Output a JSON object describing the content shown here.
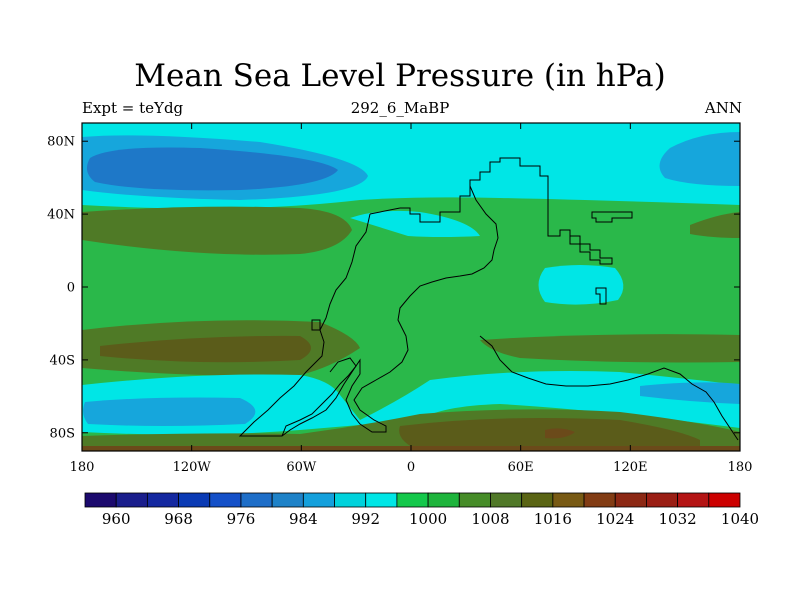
{
  "title": "Mean Sea Level Pressure (in hPa)",
  "subtitle_left": "Expt = teYdg",
  "subtitle_center": "292_6_MaBP",
  "subtitle_right": "ANN",
  "lat_ticks": [
    {
      "label": "80N",
      "lat": 80
    },
    {
      "label": "40N",
      "lat": 40
    },
    {
      "label": "0",
      "lat": 0
    },
    {
      "label": "40S",
      "lat": -40
    },
    {
      "label": "80S",
      "lat": -80
    }
  ],
  "lon_ticks": [
    {
      "label": "180",
      "lon": -180
    },
    {
      "label": "120W",
      "lon": -120
    },
    {
      "label": "60W",
      "lon": -60
    },
    {
      "label": "0",
      "lon": 0
    },
    {
      "label": "60E",
      "lon": 60
    },
    {
      "label": "120E",
      "lon": 120
    },
    {
      "label": "180",
      "lon": 180
    }
  ],
  "colorbar": {
    "levels": [
      960,
      964,
      968,
      972,
      976,
      980,
      984,
      988,
      992,
      996,
      1000,
      1004,
      1008,
      1012,
      1016,
      1020,
      1024,
      1028,
      1032,
      1036,
      1040
    ],
    "labels": [
      "960",
      "968",
      "976",
      "984",
      "992",
      "1000",
      "1008",
      "1016",
      "1024",
      "1032",
      "1040"
    ],
    "colors": [
      "#1c0a6e",
      "#1a1e8c",
      "#1428a0",
      "#0a3ab4",
      "#1450c8",
      "#1e6ec8",
      "#1e82c8",
      "#14a0dc",
      "#00d2dc",
      "#00e6e6",
      "#14c84b",
      "#1eb43c",
      "#468c28",
      "#507828",
      "#5a6414",
      "#785a14",
      "#823c14",
      "#8c2814",
      "#9a1e14",
      "#b41414",
      "#cc0000"
    ]
  },
  "field_colors": {
    "background": "#2ab84a",
    "cyan": "#00e6e6",
    "light_blue": "#16a6dc",
    "blue": "#1e78c8",
    "olive": "#4f7a26",
    "brown": "#5b5c1a",
    "dark_brown": "#6b4a1a"
  }
}
